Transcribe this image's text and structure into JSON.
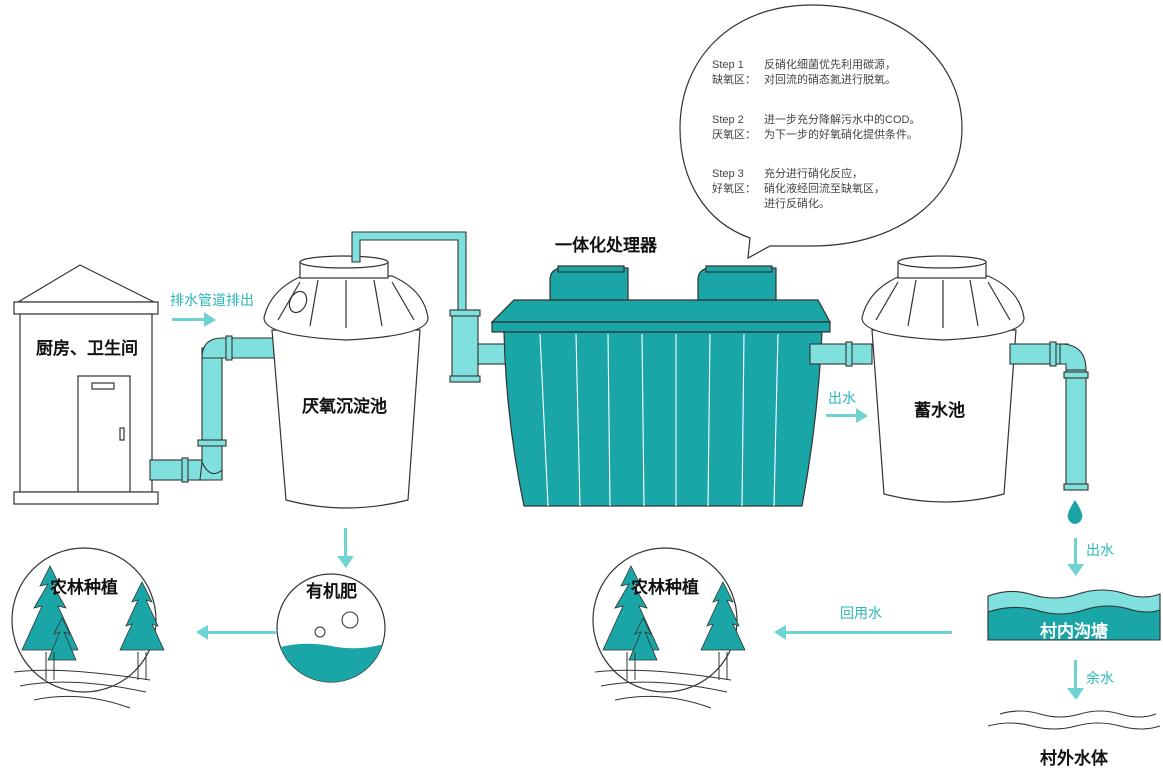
{
  "labels": {
    "house": "厨房、卫生间",
    "drain": "排水管道排出",
    "anaerobic_tank": "厌氧沉淀池",
    "processor": "一体化处理器",
    "outflow_1": "出水",
    "storage_tank": "蓄水池",
    "outflow_2": "出水",
    "fertilizer": "有机肥",
    "farming_left": "农林种植",
    "farming_right": "农林种植",
    "reuse": "回用水",
    "ditch": "村内沟塘",
    "surplus": "余水",
    "outside_water": "村外水体"
  },
  "steps": [
    {
      "step": "Step 1",
      "zone": "缺氧区：",
      "lines": [
        "反硝化细菌优先利用碳源，",
        "对回流的硝态氮进行脱氧。"
      ]
    },
    {
      "step": "Step 2",
      "zone": "厌氧区：",
      "lines": [
        "进一步充分降解污水中的COD。",
        "为下一步的好氧硝化提供条件。"
      ]
    },
    {
      "step": "Step 3",
      "zone": "好氧区：",
      "lines": [
        "充分进行硝化反应，",
        "硝化液经回流至缺氧区，",
        "进行反硝化。"
      ]
    }
  ],
  "colors": {
    "teal": "#1aa6a6",
    "light_teal": "#7fe0dd",
    "arrow": "#6fd3d3",
    "text_teal": "#2bb7b9"
  }
}
